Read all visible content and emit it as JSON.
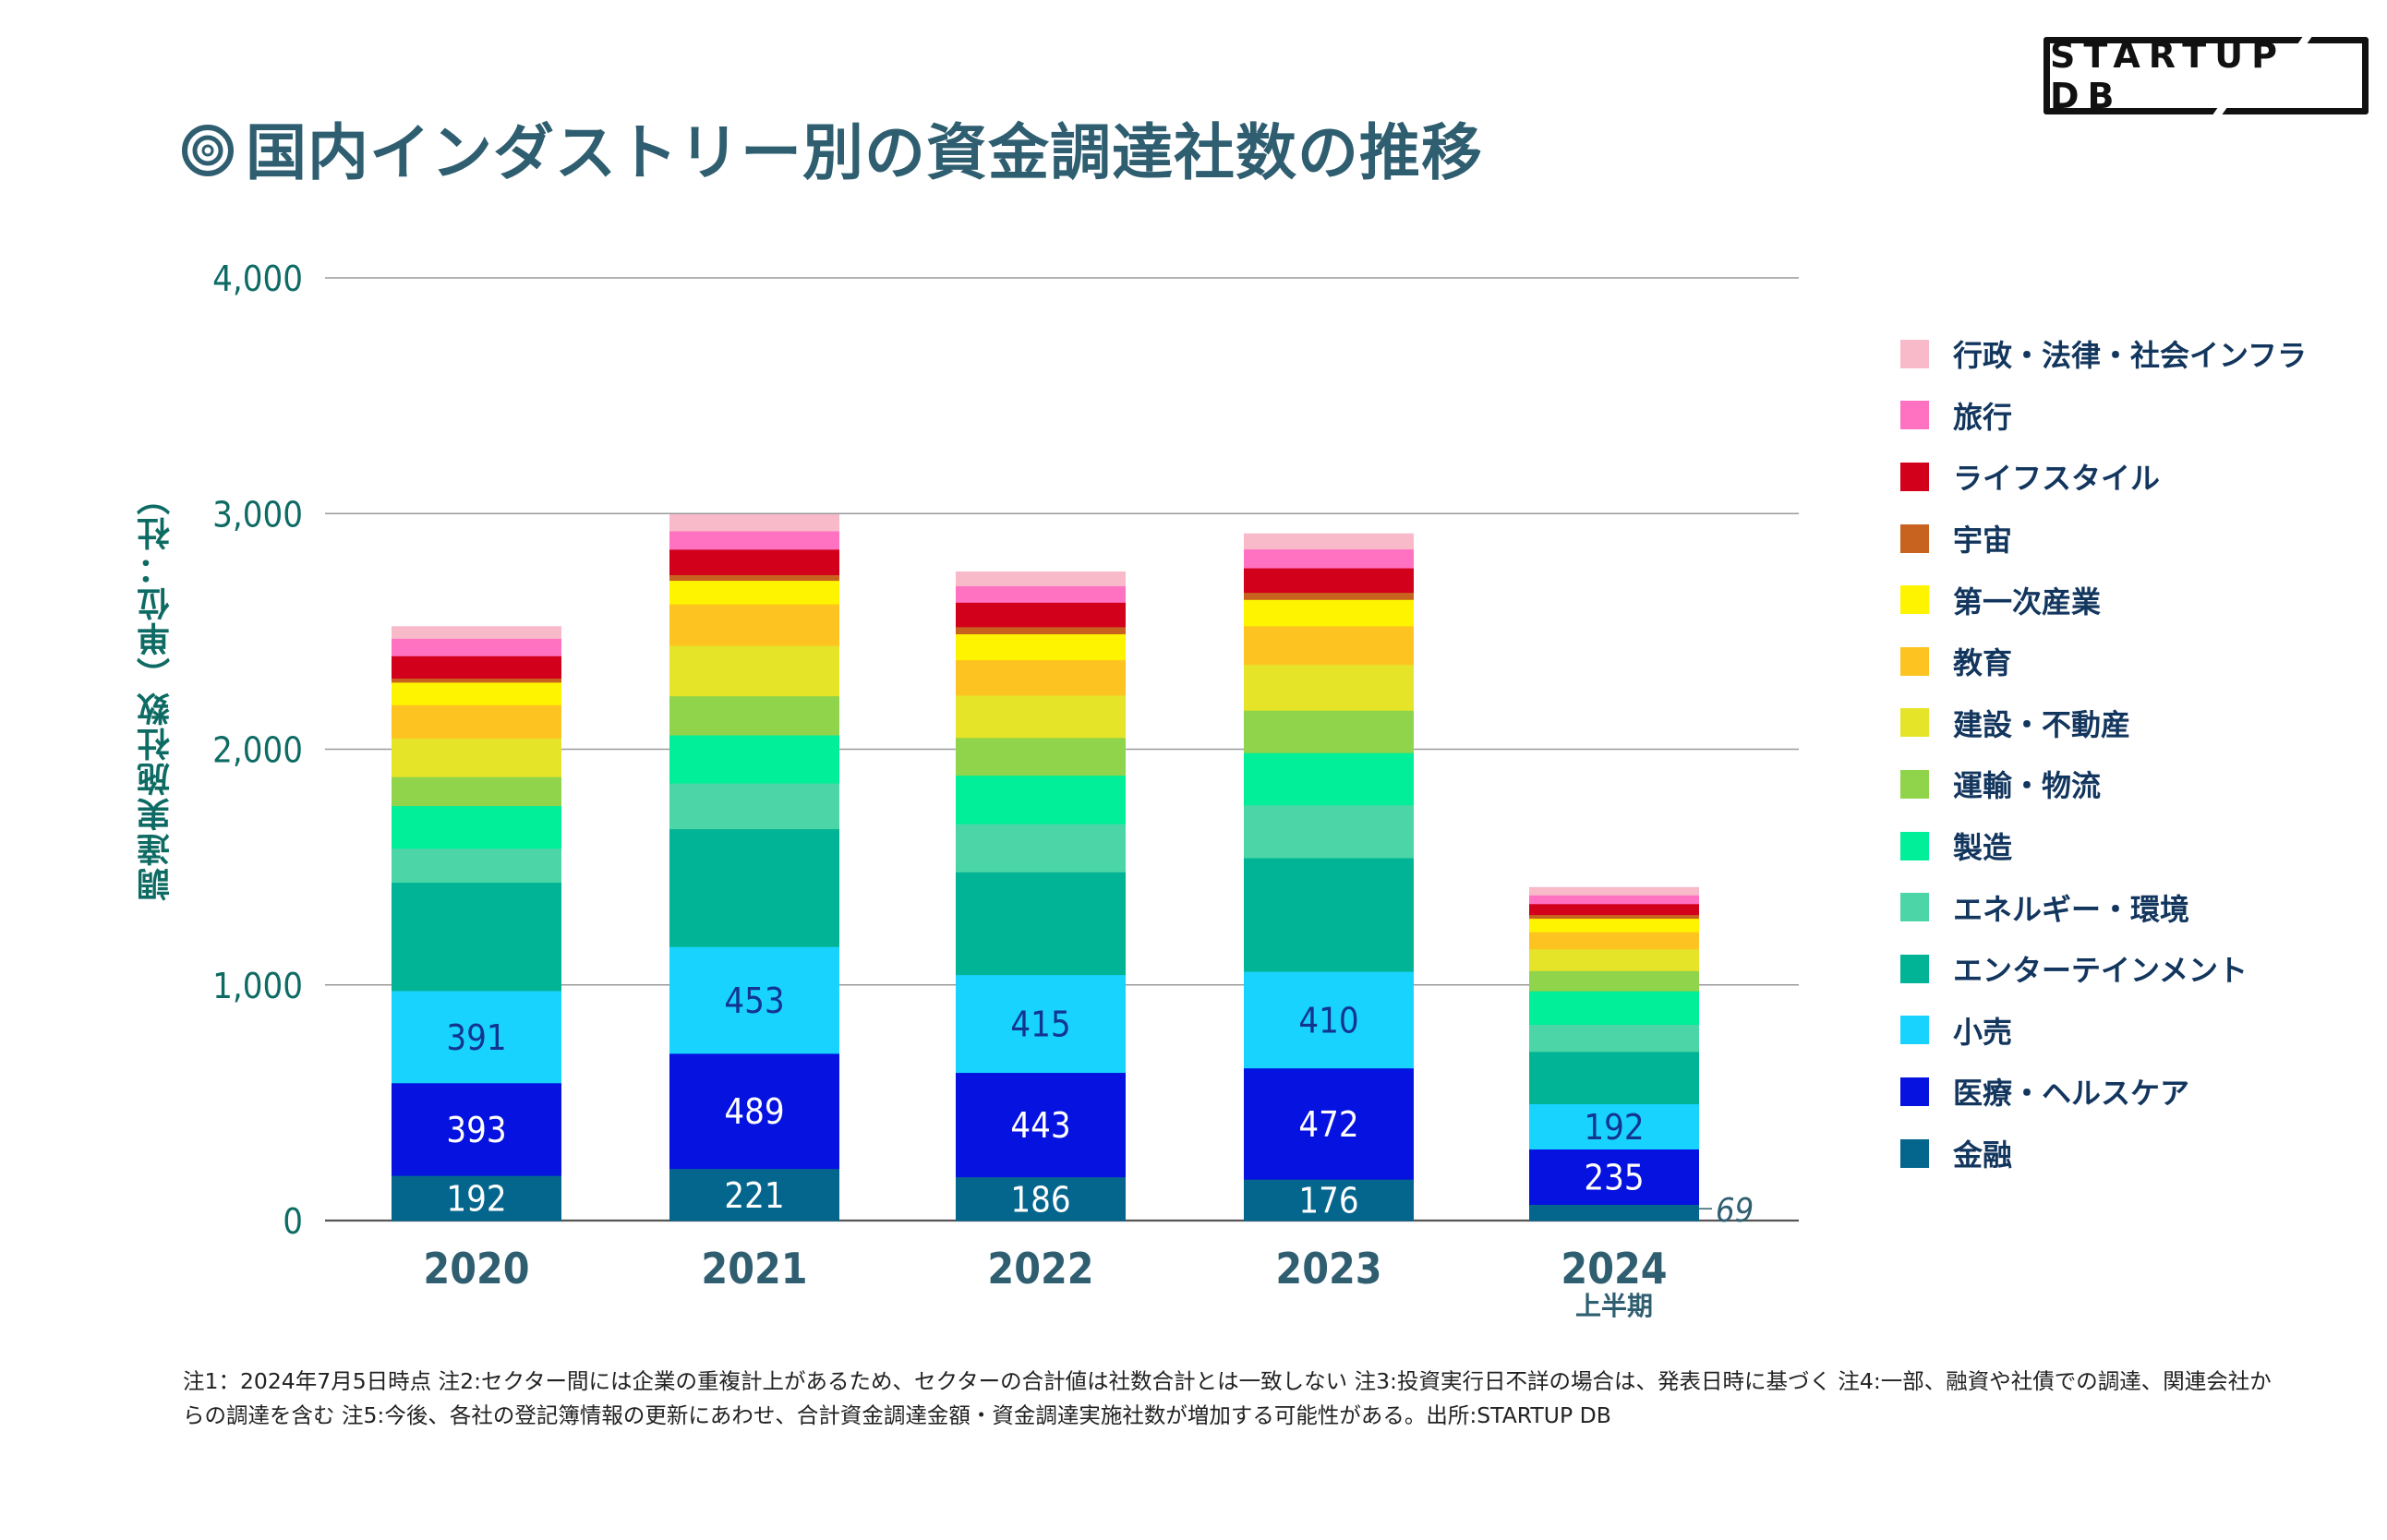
{
  "header": {
    "title": "国内インダストリー別の資金調達社数の推移",
    "title_icon": "double-circle-icon",
    "logo_text": "STARTUP DB"
  },
  "colors": {
    "title": "#2e5e70",
    "axis_text": "#0e6b64",
    "category_text": "#2e5e70",
    "legend_text": "#13365e"
  },
  "chart_data": {
    "type": "bar",
    "stacked": true,
    "title": "国内インダストリー別の資金調達社数の推移",
    "xlabel": "",
    "ylabel": "調達実施社数（単位：社）",
    "ylim": [
      0,
      4000
    ],
    "yticks": [
      0,
      1000,
      2000,
      3000,
      4000
    ],
    "ytick_labels": [
      "0",
      "1,000",
      "2,000",
      "3,000",
      "4,000"
    ],
    "grid": true,
    "legend_position": "right",
    "categories": [
      "2020",
      "2021",
      "2022",
      "2023",
      "2024"
    ],
    "category_sublabels": [
      "",
      "",
      "",
      "",
      "上半期"
    ],
    "series": [
      {
        "name": "金融",
        "color": "#05668d",
        "values": [
          192,
          221,
          186,
          176,
          69
        ],
        "labeled": true,
        "label_color": "#ffffff"
      },
      {
        "name": "医療・ヘルスケア",
        "color": "#0512e0",
        "values": [
          393,
          489,
          443,
          472,
          235
        ],
        "labeled": true,
        "label_color": "#ffffff"
      },
      {
        "name": "小売",
        "color": "#19d3ff",
        "values": [
          391,
          453,
          415,
          410,
          192
        ],
        "labeled": true,
        "label_color": "#12358e"
      },
      {
        "name": "エンターテインメント",
        "color": "#02b496",
        "values": [
          460,
          500,
          436,
          482,
          222
        ]
      },
      {
        "name": "エネルギー・環境",
        "color": "#4cd6a8",
        "values": [
          144,
          194,
          204,
          224,
          115
        ]
      },
      {
        "name": "製造",
        "color": "#01ef98",
        "values": [
          181,
          204,
          206,
          222,
          142
        ]
      },
      {
        "name": "運輸・物流",
        "color": "#8fd44a",
        "values": [
          123,
          166,
          160,
          180,
          86
        ]
      },
      {
        "name": "建設・不動産",
        "color": "#e6e429",
        "values": [
          164,
          214,
          180,
          194,
          92
        ]
      },
      {
        "name": "教育",
        "color": "#fdc421",
        "values": [
          141,
          176,
          150,
          164,
          73
        ]
      },
      {
        "name": "第一次産業",
        "color": "#fff400",
        "values": [
          96,
          100,
          110,
          112,
          57
        ]
      },
      {
        "name": "宇宙",
        "color": "#c7621f",
        "values": [
          17,
          24,
          30,
          30,
          16
        ]
      },
      {
        "name": "ライフスタイル",
        "color": "#d2001b",
        "values": [
          95,
          108,
          104,
          104,
          46
        ]
      },
      {
        "name": "旅行",
        "color": "#ff72c2",
        "values": [
          74,
          78,
          70,
          80,
          37
        ]
      },
      {
        "name": "行政・法律・社会インフラ",
        "color": "#f8b9c9",
        "values": [
          51,
          70,
          60,
          66,
          33
        ]
      }
    ],
    "annotations": [
      {
        "category": "2024",
        "series": "金融",
        "text": "69",
        "placement": "outside-right"
      }
    ]
  },
  "legend": {
    "items": [
      {
        "label": "行政・法律・社会インフラ",
        "color": "#f8b9c9"
      },
      {
        "label": "旅行",
        "color": "#ff72c2"
      },
      {
        "label": "ライフスタイル",
        "color": "#d2001b"
      },
      {
        "label": "宇宙",
        "color": "#c7621f"
      },
      {
        "label": "第一次産業",
        "color": "#fff400"
      },
      {
        "label": "教育",
        "color": "#fdc421"
      },
      {
        "label": "建設・不動産",
        "color": "#e6e429"
      },
      {
        "label": "運輸・物流",
        "color": "#8fd44a"
      },
      {
        "label": "製造",
        "color": "#01ef98"
      },
      {
        "label": "エネルギー・環境",
        "color": "#4cd6a8"
      },
      {
        "label": "エンターテインメント",
        "color": "#02b496"
      },
      {
        "label": "小売",
        "color": "#19d3ff"
      },
      {
        "label": "医療・ヘルスケア",
        "color": "#0512e0"
      },
      {
        "label": "金融",
        "color": "#05668d"
      }
    ]
  },
  "footnote": "注1：2024年7月5日時点 注2:セクター間には企業の重複計上があるため、セクターの合計値は社数合計とは一致しない 注3:投資実行日不詳の場合は、発表日時に基づく 注4:一部、融資や社債での調達、関連会社からの調達を含む 注5:今後、各社の登記簿情報の更新にあわせ、合計資金調達金額・資金調達実施社数が増加する可能性がある。出所:STARTUP DB"
}
